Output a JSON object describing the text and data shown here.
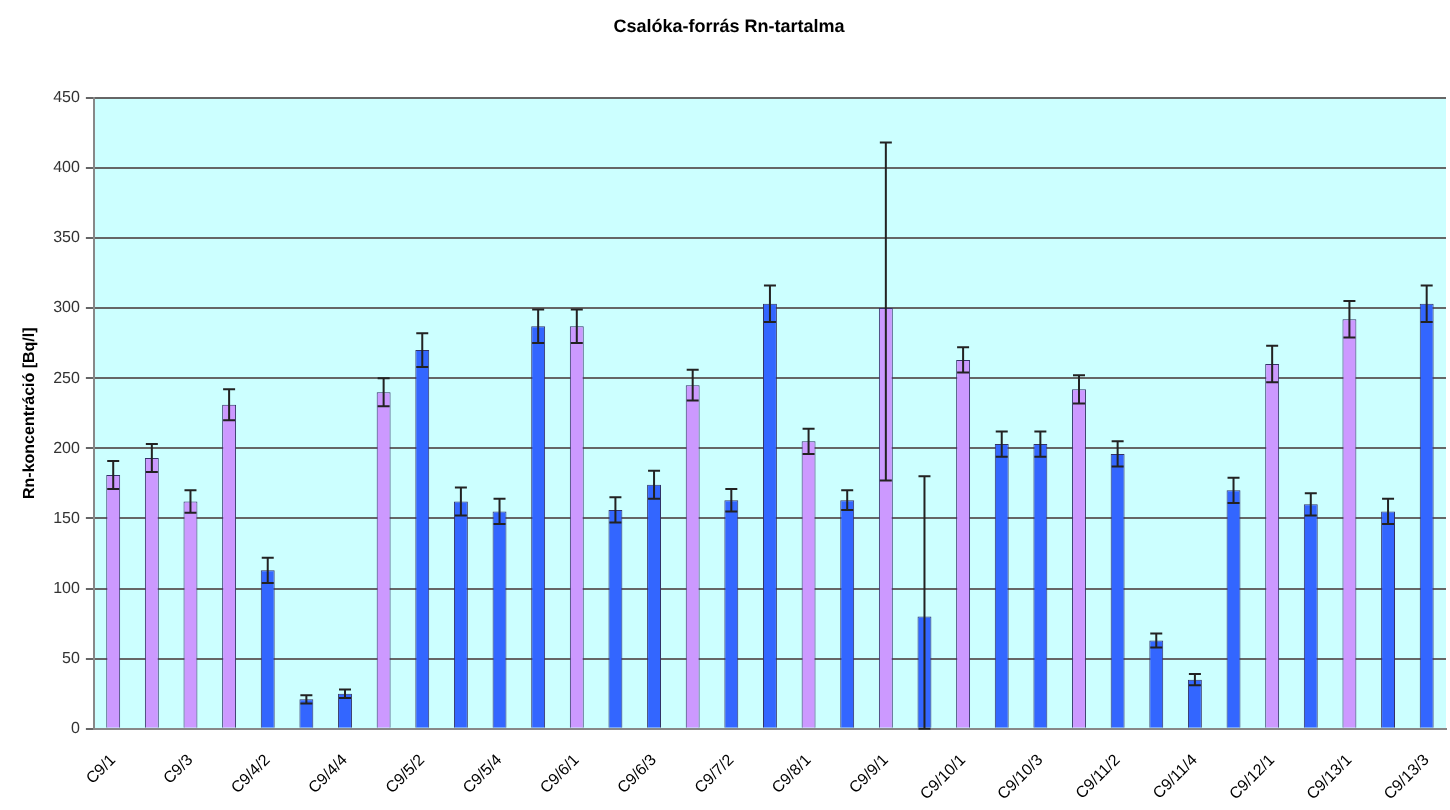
{
  "chart_data": {
    "type": "bar",
    "title": "Csalóka-forrás Rn-tartalma",
    "ylabel": "Rn-koncentráció [Bq/l]",
    "categories": [
      "C9/1",
      null,
      "C9/3",
      null,
      "C9/4/2",
      null,
      "C9/4/4",
      null,
      "C9/5/2",
      null,
      "C9/5/4",
      null,
      "C9/6/1",
      null,
      "C9/6/3",
      null,
      "C9/7/2",
      null,
      "C9/8/1",
      null,
      "C9/9/1",
      null,
      "C9/10/1",
      null,
      "C9/10/3",
      null,
      "C9/11/2",
      null,
      "C9/11/4",
      null,
      "C9/12/1",
      null,
      "C9/13/1",
      null,
      "C9/13/3"
    ],
    "values": [
      181,
      193,
      162,
      231,
      113,
      21,
      25,
      240,
      270,
      162,
      155,
      287,
      287,
      156,
      174,
      245,
      163,
      303,
      205,
      163,
      300,
      80,
      263,
      203,
      203,
      242,
      196,
      63,
      35,
      170,
      260,
      160,
      292,
      155,
      303
    ],
    "colors": [
      "#cc99ff",
      "#cc99ff",
      "#cc99ff",
      "#cc99ff",
      "#3366ff",
      "#3366ff",
      "#3366ff",
      "#cc99ff",
      "#3366ff",
      "#3366ff",
      "#3366ff",
      "#3366ff",
      "#cc99ff",
      "#3366ff",
      "#3366ff",
      "#cc99ff",
      "#3366ff",
      "#3366ff",
      "#cc99ff",
      "#3366ff",
      "#cc99ff",
      "#3366ff",
      "#cc99ff",
      "#3366ff",
      "#3366ff",
      "#cc99ff",
      "#3366ff",
      "#3366ff",
      "#3366ff",
      "#3366ff",
      "#cc99ff",
      "#3366ff",
      "#cc99ff",
      "#3366ff",
      "#3366ff"
    ],
    "errors": [
      10,
      10,
      8,
      11,
      9,
      3,
      3,
      10,
      12,
      10,
      9,
      12,
      12,
      9,
      10,
      11,
      8,
      13,
      9,
      7,
      [
        177,
        418
      ],
      [
        0,
        180
      ],
      9,
      9,
      9,
      10,
      9,
      5,
      4,
      9,
      13,
      8,
      13,
      9,
      13
    ],
    "ylim": [
      0,
      450
    ],
    "yticks": [
      0,
      50,
      100,
      150,
      200,
      250,
      300,
      350,
      400,
      450
    ],
    "grid": "y",
    "legend": false
  }
}
